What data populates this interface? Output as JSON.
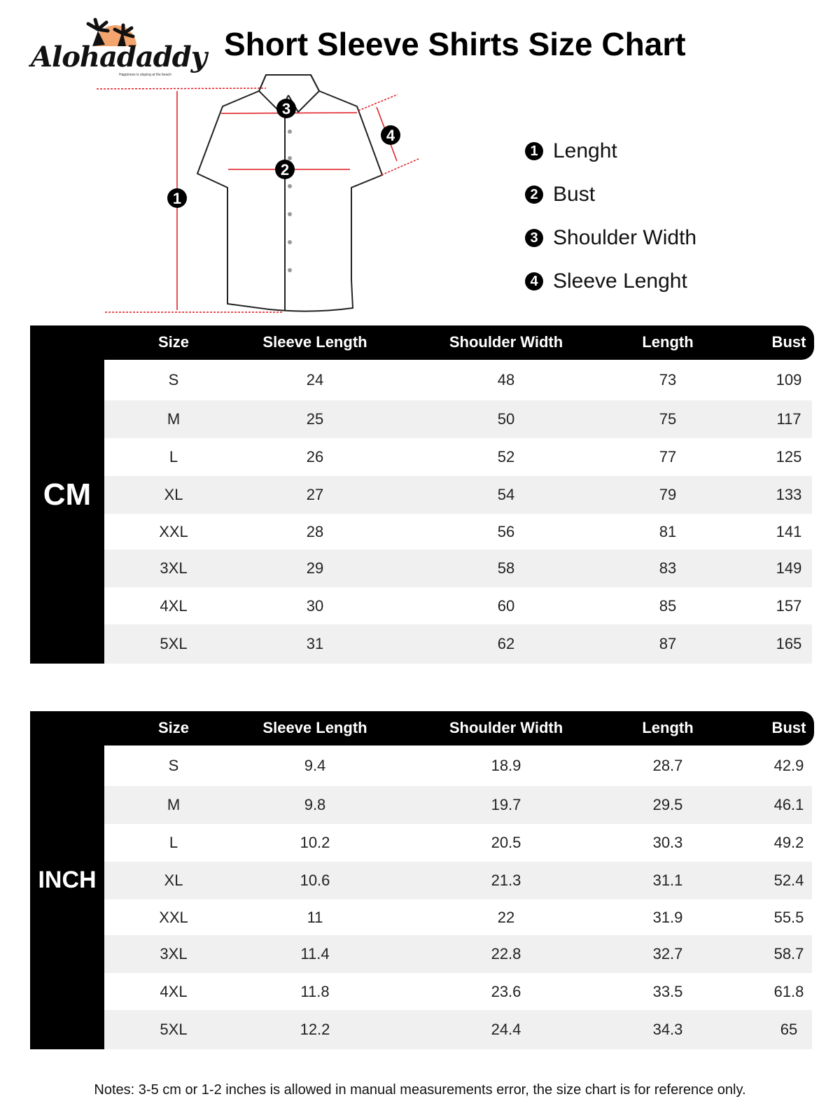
{
  "logo": {
    "brand": "Alohadaddy",
    "tagline": "Happiness is staying at the beach"
  },
  "title": "Short Sleeve Shirts Size Chart",
  "diagram": {
    "markers": [
      "1",
      "2",
      "3",
      "4"
    ]
  },
  "legend": [
    {
      "num": "1",
      "label": "Lenght"
    },
    {
      "num": "2",
      "label": "Bust"
    },
    {
      "num": "3",
      "label": "Shoulder Width"
    },
    {
      "num": "4",
      "label": "Sleeve Lenght"
    }
  ],
  "columns": [
    "Size",
    "Sleeve Length",
    "Shoulder Width",
    "Length",
    "Bust"
  ],
  "cm": {
    "unit": "CM",
    "rows": [
      [
        "S",
        "24",
        "48",
        "73",
        "109"
      ],
      [
        "M",
        "25",
        "50",
        "75",
        "117"
      ],
      [
        "L",
        "26",
        "52",
        "77",
        "125"
      ],
      [
        "XL",
        "27",
        "54",
        "79",
        "133"
      ],
      [
        "XXL",
        "28",
        "56",
        "81",
        "141"
      ],
      [
        "3XL",
        "29",
        "58",
        "83",
        "149"
      ],
      [
        "4XL",
        "30",
        "60",
        "85",
        "157"
      ],
      [
        "5XL",
        "31",
        "62",
        "87",
        "165"
      ]
    ]
  },
  "inch": {
    "unit": "INCH",
    "rows": [
      [
        "S",
        "9.4",
        "18.9",
        "28.7",
        "42.9"
      ],
      [
        "M",
        "9.8",
        "19.7",
        "29.5",
        "46.1"
      ],
      [
        "L",
        "10.2",
        "20.5",
        "30.3",
        "49.2"
      ],
      [
        "XL",
        "10.6",
        "21.3",
        "31.1",
        "52.4"
      ],
      [
        "XXL",
        "11",
        "22",
        "31.9",
        "55.5"
      ],
      [
        "3XL",
        "11.4",
        "22.8",
        "32.7",
        "58.7"
      ],
      [
        "4XL",
        "11.8",
        "23.6",
        "33.5",
        "61.8"
      ],
      [
        "5XL",
        "12.2",
        "24.4",
        "34.3",
        "65"
      ]
    ]
  },
  "notes": "Notes: 3-5 cm or 1-2 inches is allowed in manual measurements error, the size chart is for reference only.",
  "colors": {
    "accent": "#e0161e",
    "logo_sun": "#f4a46e"
  }
}
